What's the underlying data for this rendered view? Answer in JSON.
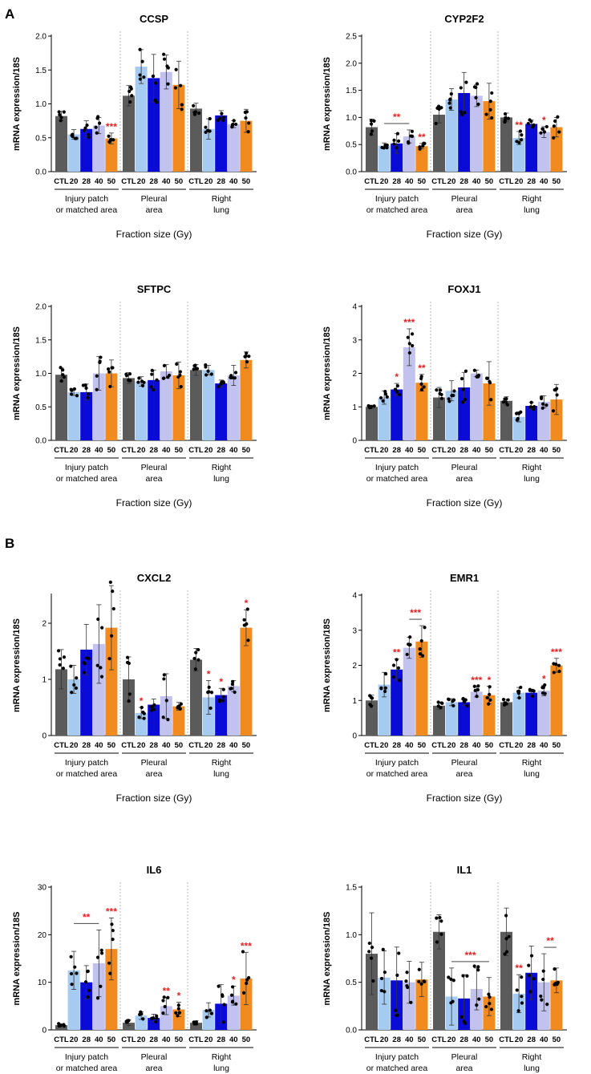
{
  "figure": {
    "panel_labels": [
      "A",
      "B"
    ],
    "bar_labels": [
      "CTL",
      "20",
      "28",
      "40",
      "50"
    ],
    "group_labels": [
      [
        "Injury patch",
        "or matched area"
      ],
      [
        "Pleural",
        "area"
      ],
      [
        "Right",
        "lung"
      ]
    ],
    "xlabel": "Fraction size (Gy)",
    "ylabel": "mRNA expression/18S",
    "colors": {
      "CTL": "#5b5b5b",
      "20": "#a6cbf2",
      "28": "#0b0bd8",
      "40": "#c2c2ee",
      "50": "#f18a1f",
      "significance": "#ee1c1c",
      "divider": "#b5b5b5"
    }
  },
  "chart_data": [
    {
      "type": "bar",
      "title": "CCSP",
      "ylabel": "mRNA expression/18S",
      "xlabel": "Fraction size (Gy)",
      "ylim": [
        0,
        2.0
      ],
      "yticks": [
        "0.0",
        "0.5",
        "1.0",
        "1.5",
        "2.0"
      ],
      "categories": [
        "Injury patch or matched area",
        "Pleural area",
        "Right lung"
      ],
      "series": [
        {
          "name": "CTL",
          "values": [
            0.82,
            1.12,
            0.93
          ],
          "errors": [
            0.07,
            0.15,
            0.08
          ]
        },
        {
          "name": "20",
          "values": [
            0.55,
            1.55,
            0.63
          ],
          "errors": [
            0.07,
            0.25,
            0.15
          ]
        },
        {
          "name": "28",
          "values": [
            0.63,
            1.38,
            0.83
          ],
          "errors": [
            0.12,
            0.35,
            0.07
          ]
        },
        {
          "name": "40",
          "values": [
            0.68,
            1.47,
            0.7
          ],
          "errors": [
            0.12,
            0.25,
            0.05
          ]
        },
        {
          "name": "50",
          "values": [
            0.49,
            1.28,
            0.75
          ],
          "errors": [
            0.08,
            0.35,
            0.17
          ]
        }
      ],
      "annotations": [
        {
          "group": 0,
          "bar": 4,
          "text": "***"
        }
      ]
    },
    {
      "type": "bar",
      "title": "CYP2F2",
      "ylabel": "mRNA expression/18S",
      "xlabel": "Fraction size (Gy)",
      "ylim": [
        0,
        2.5
      ],
      "yticks": [
        "0.0",
        "0.5",
        "1.0",
        "1.5",
        "2.0",
        "2.5"
      ],
      "categories": [
        "Injury patch or matched area",
        "Pleural area",
        "Right lung"
      ],
      "series": [
        {
          "name": "CTL",
          "values": [
            0.82,
            1.05,
            1.0
          ],
          "errors": [
            0.15,
            0.15,
            0.08
          ]
        },
        {
          "name": "20",
          "values": [
            0.48,
            1.33,
            0.62
          ],
          "errors": [
            0.05,
            0.2,
            0.12
          ]
        },
        {
          "name": "28",
          "values": [
            0.52,
            1.45,
            0.88
          ],
          "errors": [
            0.18,
            0.38,
            0.07
          ]
        },
        {
          "name": "40",
          "values": [
            0.65,
            1.4,
            0.73
          ],
          "errors": [
            0.12,
            0.2,
            0.1
          ]
        },
        {
          "name": "50",
          "values": [
            0.47,
            1.3,
            0.82
          ],
          "errors": [
            0.05,
            0.33,
            0.18
          ]
        }
      ],
      "annotations": [
        {
          "group": 0,
          "bar": 1,
          "bar_end": 3,
          "text": "**",
          "line": true
        },
        {
          "group": 0,
          "bar": 4,
          "text": "**"
        },
        {
          "group": 2,
          "bar": 1,
          "text": "**"
        },
        {
          "group": 2,
          "bar": 3,
          "text": "*"
        }
      ]
    },
    {
      "type": "bar",
      "title": "SFTPC",
      "ylabel": "mRNA expression/18S",
      "xlabel": "Fraction size (Gy)",
      "ylim": [
        0,
        2.0
      ],
      "yticks": [
        "0.0",
        "0.5",
        "1.0",
        "1.5",
        "2.0"
      ],
      "categories": [
        "Injury patch or matched area",
        "Pleural area",
        "Right lung"
      ],
      "series": [
        {
          "name": "CTL",
          "values": [
            0.98,
            0.93,
            1.05
          ],
          "errors": [
            0.1,
            0.08,
            0.08
          ]
        },
        {
          "name": "20",
          "values": [
            0.72,
            0.88,
            1.05
          ],
          "errors": [
            0.05,
            0.07,
            0.07
          ]
        },
        {
          "name": "28",
          "values": [
            0.72,
            0.9,
            0.85
          ],
          "errors": [
            0.12,
            0.15,
            0.05
          ]
        },
        {
          "name": "40",
          "values": [
            1.0,
            1.03,
            0.97
          ],
          "errors": [
            0.25,
            0.1,
            0.15
          ]
        },
        {
          "name": "50",
          "values": [
            1.0,
            0.97,
            1.2
          ],
          "errors": [
            0.2,
            0.2,
            0.12
          ]
        }
      ],
      "annotations": []
    },
    {
      "type": "bar",
      "title": "FOXJ1",
      "ylabel": "mRNA expression/18S",
      "xlabel": "Fraction size (Gy)",
      "ylim": [
        0,
        4
      ],
      "yticks": [
        "0",
        "1",
        "2",
        "3",
        "4"
      ],
      "categories": [
        "Injury patch or matched area",
        "Pleural area",
        "Right lung"
      ],
      "series": [
        {
          "name": "CTL",
          "values": [
            1.0,
            1.28,
            1.18
          ],
          "errors": [
            0.05,
            0.3,
            0.12
          ]
        },
        {
          "name": "20",
          "values": [
            1.28,
            1.48,
            0.7
          ],
          "errors": [
            0.2,
            0.3,
            0.15
          ]
        },
        {
          "name": "28",
          "values": [
            1.52,
            1.58,
            1.03
          ],
          "errors": [
            0.18,
            0.45,
            0.1
          ]
        },
        {
          "name": "40",
          "values": [
            2.78,
            2.0,
            1.15
          ],
          "errors": [
            0.55,
            0.1,
            0.18
          ]
        },
        {
          "name": "50",
          "values": [
            1.72,
            1.7,
            1.22
          ],
          "errors": [
            0.25,
            0.65,
            0.45
          ]
        }
      ],
      "annotations": [
        {
          "group": 0,
          "bar": 2,
          "text": "*"
        },
        {
          "group": 0,
          "bar": 3,
          "text": "***"
        },
        {
          "group": 0,
          "bar": 4,
          "text": "**"
        }
      ]
    },
    {
      "type": "bar",
      "title": "CXCL2",
      "ylabel": "mRNA expression/18S",
      "xlabel": "Fraction size (Gy)",
      "ylim": [
        0,
        2.5
      ],
      "yticks": [
        "0",
        "1",
        "2"
      ],
      "ytick_values": [
        0,
        1,
        2
      ],
      "categories": [
        "Injury patch or matched area",
        "Pleural area",
        "Right lung"
      ],
      "series": [
        {
          "name": "CTL",
          "values": [
            1.18,
            1.0,
            1.35
          ],
          "errors": [
            0.35,
            0.4,
            0.2
          ]
        },
        {
          "name": "20",
          "values": [
            1.0,
            0.4,
            0.68
          ],
          "errors": [
            0.25,
            0.1,
            0.3
          ]
        },
        {
          "name": "28",
          "values": [
            1.53,
            0.55,
            0.72
          ],
          "errors": [
            0.45,
            0.1,
            0.12
          ]
        },
        {
          "name": "40",
          "values": [
            1.63,
            0.7,
            0.88
          ],
          "errors": [
            0.7,
            0.4,
            0.1
          ]
        },
        {
          "name": "50",
          "values": [
            1.92,
            0.52,
            1.92
          ],
          "errors": [
            0.75,
            0.07,
            0.32
          ]
        }
      ],
      "annotations": [
        {
          "group": 1,
          "bar": 1,
          "text": "*"
        },
        {
          "group": 2,
          "bar": 1,
          "text": "*"
        },
        {
          "group": 2,
          "bar": 2,
          "text": "*"
        },
        {
          "group": 2,
          "bar": 4,
          "text": "*"
        }
      ]
    },
    {
      "type": "bar",
      "title": "EMR1",
      "ylabel": "mRNA expression/18S",
      "xlabel": "Fraction size (Gy)",
      "ylim": [
        0,
        4
      ],
      "yticks": [
        "0",
        "1",
        "2",
        "3",
        "4"
      ],
      "categories": [
        "Injury patch or matched area",
        "Pleural area",
        "Right lung"
      ],
      "series": [
        {
          "name": "CTL",
          "values": [
            1.0,
            0.85,
            0.95
          ],
          "errors": [
            0.15,
            0.1,
            0.08
          ]
        },
        {
          "name": "20",
          "values": [
            1.45,
            0.95,
            1.22
          ],
          "errors": [
            0.35,
            0.1,
            0.15
          ]
        },
        {
          "name": "28",
          "values": [
            1.88,
            0.95,
            1.22
          ],
          "errors": [
            0.3,
            0.1,
            0.1
          ]
        },
        {
          "name": "40",
          "values": [
            2.5,
            1.25,
            1.28
          ],
          "errors": [
            0.3,
            0.15,
            0.15
          ]
        },
        {
          "name": "50",
          "values": [
            2.68,
            1.15,
            2.0
          ],
          "errors": [
            0.45,
            0.25,
            0.2
          ]
        }
      ],
      "annotations": [
        {
          "group": 0,
          "bar": 2,
          "text": "**"
        },
        {
          "group": 0,
          "bar": 3,
          "bar_end": 4,
          "text": "***",
          "line": true
        },
        {
          "group": 1,
          "bar": 3,
          "text": "***"
        },
        {
          "group": 1,
          "bar": 4,
          "text": "*"
        },
        {
          "group": 2,
          "bar": 3,
          "text": "*"
        },
        {
          "group": 2,
          "bar": 4,
          "text": "***"
        }
      ]
    },
    {
      "type": "bar",
      "title": "IL6",
      "ylabel": "mRNA expression/18S",
      "xlabel": "Fraction size (Gy)",
      "ylim": [
        0,
        30
      ],
      "yticks": [
        "0",
        "10",
        "20",
        "30"
      ],
      "categories": [
        "Injury patch or matched area",
        "Pleural area",
        "Right lung"
      ],
      "series": [
        {
          "name": "CTL",
          "values": [
            1.0,
            1.5,
            1.5
          ],
          "errors": [
            0.3,
            0.6,
            0.4
          ]
        },
        {
          "name": "20",
          "values": [
            12.5,
            3.0,
            4.2
          ],
          "errors": [
            4.0,
            0.8,
            1.5
          ]
        },
        {
          "name": "28",
          "values": [
            10.0,
            2.5,
            5.5
          ],
          "errors": [
            3.5,
            0.8,
            4.0
          ]
        },
        {
          "name": "40",
          "values": [
            14.0,
            5.0,
            7.2
          ],
          "errors": [
            7.0,
            1.8,
            2.0
          ]
        },
        {
          "name": "50",
          "values": [
            17.0,
            4.3,
            10.8
          ],
          "errors": [
            6.5,
            1.5,
            5.5
          ]
        }
      ],
      "annotations": [
        {
          "group": 0,
          "bar": 1,
          "bar_end": 3,
          "text": "**",
          "line": true
        },
        {
          "group": 0,
          "bar": 4,
          "text": "***"
        },
        {
          "group": 1,
          "bar": 3,
          "text": "**"
        },
        {
          "group": 1,
          "bar": 4,
          "text": "*"
        },
        {
          "group": 2,
          "bar": 3,
          "text": "*"
        },
        {
          "group": 2,
          "bar": 4,
          "text": "***"
        }
      ]
    },
    {
      "type": "bar",
      "title": "IL1",
      "ylabel": "mRNA expression/18S",
      "xlabel": "Fraction size (Gy)",
      "ylim": [
        0,
        1.5
      ],
      "yticks": [
        "0.0",
        "0.5",
        "1.0",
        "1.5"
      ],
      "categories": [
        "Injury patch or matched area",
        "Pleural area",
        "Right lung"
      ],
      "series": [
        {
          "name": "CTL",
          "values": [
            0.8,
            1.03,
            1.03
          ],
          "errors": [
            0.43,
            0.18,
            0.25
          ]
        },
        {
          "name": "20",
          "values": [
            0.55,
            0.35,
            0.38
          ],
          "errors": [
            0.28,
            0.3,
            0.2
          ]
        },
        {
          "name": "28",
          "values": [
            0.52,
            0.33,
            0.6
          ],
          "errors": [
            0.35,
            0.25,
            0.28
          ]
        },
        {
          "name": "40",
          "values": [
            0.5,
            0.43,
            0.5
          ],
          "errors": [
            0.22,
            0.22,
            0.3
          ]
        },
        {
          "name": "50",
          "values": [
            0.53,
            0.35,
            0.52
          ],
          "errors": [
            0.18,
            0.2,
            0.13
          ]
        }
      ],
      "annotations": [
        {
          "group": 1,
          "bar": 1,
          "bar_end": 4,
          "text": "***",
          "line": true
        },
        {
          "group": 2,
          "bar": 1,
          "text": "**"
        },
        {
          "group": 2,
          "bar": 3,
          "bar_end": 4,
          "text": "**",
          "line": true
        }
      ]
    }
  ]
}
